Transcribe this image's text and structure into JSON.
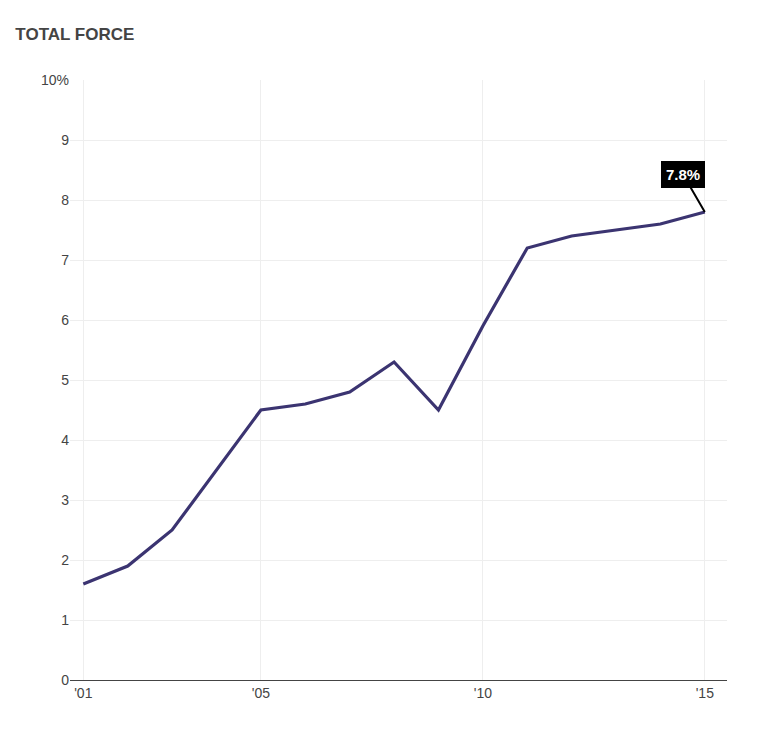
{
  "chart_data": {
    "type": "line",
    "title": "TOTAL FORCE",
    "x": [
      2001,
      2002,
      2003,
      2004,
      2005,
      2006,
      2007,
      2008,
      2009,
      2010,
      2011,
      2012,
      2013,
      2014,
      2015
    ],
    "values": [
      1.6,
      1.9,
      2.5,
      3.5,
      4.5,
      4.6,
      4.8,
      5.3,
      4.5,
      5.9,
      7.2,
      7.4,
      7.5,
      7.6,
      7.8
    ],
    "color": "#3b3471",
    "xlim": [
      2000.7,
      2015.5
    ],
    "xticks": [
      {
        "value": 2001,
        "label": "'01"
      },
      {
        "value": 2005,
        "label": "'05"
      },
      {
        "value": 2010,
        "label": "'10"
      },
      {
        "value": 2015,
        "label": "'15"
      }
    ],
    "ylim": [
      0,
      10
    ],
    "yticks": [
      0,
      1,
      2,
      3,
      4,
      5,
      6,
      7,
      8,
      9,
      {
        "value": 10,
        "label": "10%"
      }
    ],
    "annotations": [
      {
        "text": "7.8%",
        "x": 2015,
        "y": 7.8
      }
    ],
    "grid": true
  }
}
